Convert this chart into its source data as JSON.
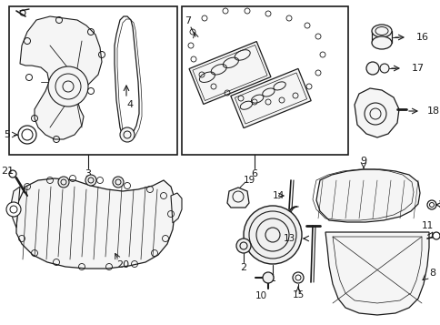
{
  "bg_color": "#ffffff",
  "line_color": "#1a1a1a",
  "fig_w": 4.85,
  "fig_h": 3.57,
  "dpi": 100
}
